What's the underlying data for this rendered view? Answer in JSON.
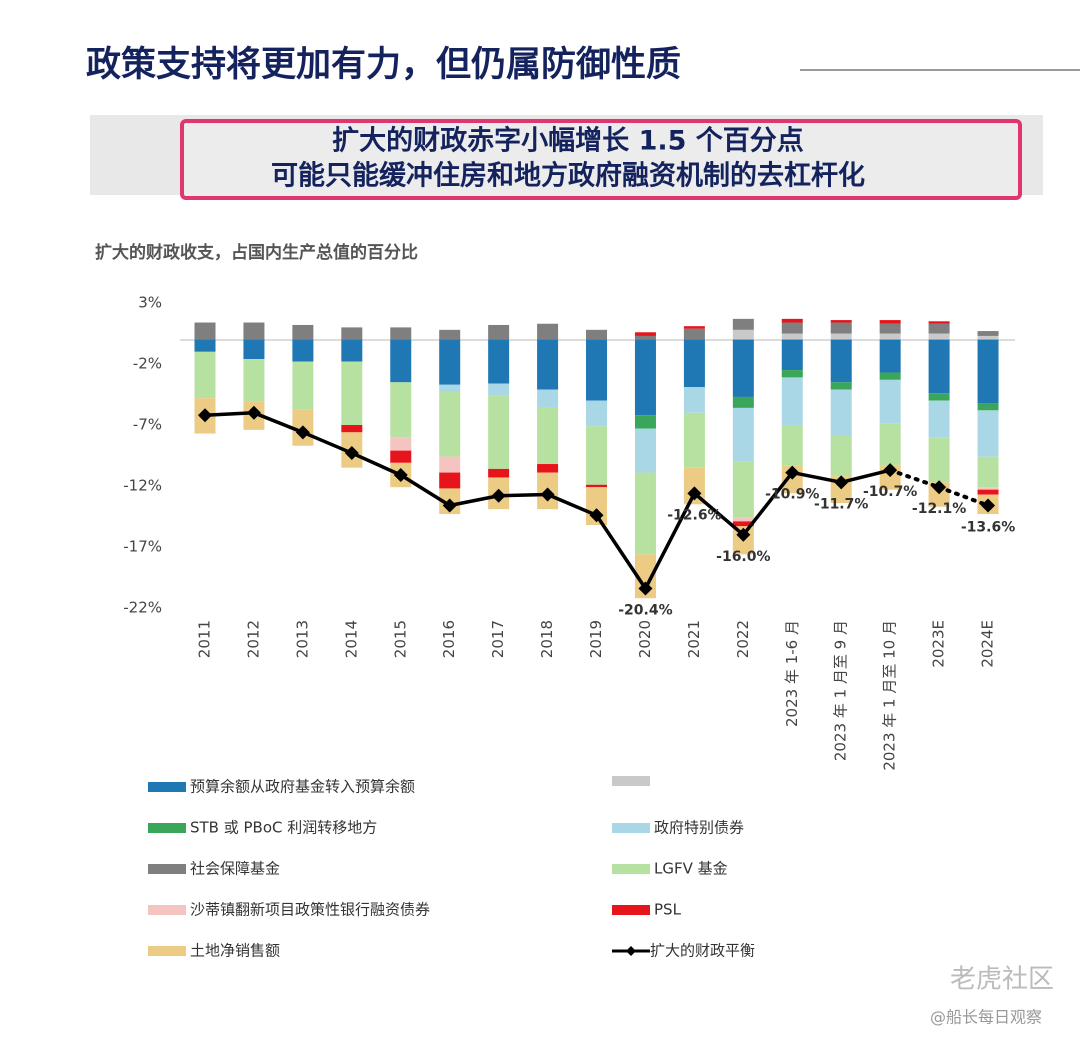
{
  "header": {
    "title": "政策支持将更加有力，但仍属防御性质",
    "callout": [
      "扩大的财政赤字小幅增长 1.5 个百分点",
      "可能只能缓冲住房和地方政府融资机制的去杠杆化"
    ]
  },
  "chart_data": {
    "type": "stacked_bar_line",
    "title": "扩大的财政收支，占国内生产总值的百分比",
    "categories": [
      "2011",
      "2012",
      "2013",
      "2014",
      "2015",
      "2016",
      "2017",
      "2018",
      "2019",
      "2020",
      "2021",
      "2022",
      "2023 年 1-6 月",
      "2023 年 1 月至 9 月",
      "2023 年 1 月至 10 月",
      "2023E",
      "2024E"
    ],
    "ylim": [
      -22,
      3
    ],
    "yticks": [
      {
        "value": 3,
        "label": "3%"
      },
      {
        "value": -2,
        "label": "-2%"
      },
      {
        "value": -7,
        "label": "-7%"
      },
      {
        "value": -12,
        "label": "-12%"
      },
      {
        "value": -17,
        "label": "-17%"
      },
      {
        "value": -22,
        "label": "-22%"
      }
    ],
    "series": [
      {
        "name": null,
        "color": "#c9c9c9",
        "values": [
          null,
          null,
          null,
          null,
          null,
          null,
          null,
          null,
          null,
          null,
          null,
          0.8,
          0.5,
          0.5,
          0.5,
          0.5,
          0.3
        ]
      },
      {
        "name": "社会保障基金",
        "color": "#7f7f7f",
        "values": [
          1.4,
          1.4,
          1.2,
          1.0,
          1.0,
          0.8,
          1.2,
          1.3,
          0.8,
          0.3,
          0.9,
          0.9,
          0.9,
          0.9,
          0.8,
          0.8,
          0.4
        ]
      },
      {
        "name": "预算余额从政府基金转入预算余额",
        "color": "#1f77b4",
        "values": [
          -1.0,
          -1.6,
          -1.8,
          -1.8,
          -3.5,
          -3.7,
          -3.6,
          -4.1,
          -5.0,
          -6.2,
          -3.9,
          -4.7,
          -2.5,
          -3.5,
          -2.7,
          -4.4,
          -5.2
        ]
      },
      {
        "name": "STB 或 PBoC 利润转移地方",
        "color": "#3aa65a",
        "values": [
          null,
          null,
          null,
          null,
          null,
          null,
          null,
          null,
          null,
          -1.1,
          null,
          -0.9,
          -0.6,
          -0.6,
          -0.6,
          -0.6,
          -0.6
        ]
      },
      {
        "name": "政府特别债券",
        "color": "#a9d7e6",
        "values": [
          null,
          null,
          null,
          null,
          null,
          -0.6,
          -1.0,
          -1.5,
          -2.1,
          -3.6,
          -2.1,
          -4.4,
          -3.9,
          -3.8,
          -3.6,
          -3.0,
          -3.8
        ]
      },
      {
        "name": "LGFV 基金",
        "color": "#b7e1a1",
        "values": [
          -3.8,
          -3.5,
          -3.9,
          -5.2,
          -4.5,
          -5.3,
          -6.0,
          -4.6,
          -4.8,
          -6.7,
          -4.5,
          -4.6,
          -3.3,
          -3.3,
          -3.4,
          -3.7,
          -2.5
        ]
      },
      {
        "name": "沙蒂镇翻新项目政策性银行融资债券",
        "color": "#f5c3c0",
        "values": [
          null,
          null,
          null,
          null,
          -1.1,
          -1.3,
          null,
          null,
          null,
          null,
          null,
          -0.3,
          null,
          null,
          null,
          null,
          -0.2
        ]
      },
      {
        "name": "PSL",
        "color": "#e8141c",
        "values": [
          null,
          null,
          null,
          -0.6,
          -1.0,
          -1.3,
          -0.7,
          -0.7,
          -0.2,
          0.3,
          0.2,
          -0.4,
          0.3,
          0.2,
          0.3,
          0.2,
          -0.4
        ]
      },
      {
        "name": "土地净销售额",
        "color": "#eccb85",
        "values": [
          -2.9,
          -2.3,
          -3.0,
          -2.9,
          -2.0,
          -2.1,
          -2.6,
          -3.0,
          -3.1,
          -3.6,
          -3.0,
          -2.3,
          -2.3,
          -2.2,
          -2.0,
          -2.0,
          -1.6
        ]
      }
    ],
    "line": {
      "name": "扩大的财政平衡",
      "color": "#000000",
      "values": [
        -6.2,
        -6.0,
        -7.6,
        -9.3,
        -11.1,
        -13.6,
        -12.8,
        -12.7,
        -14.4,
        -20.4,
        -12.6,
        -16.0,
        -10.9,
        -11.7,
        -10.7,
        -12.1,
        -13.6
      ],
      "value_labels": [
        null,
        null,
        null,
        null,
        null,
        null,
        null,
        null,
        null,
        "-20.4%",
        "-12.6%",
        "-16.0%",
        "-10.9%",
        "-11.7%",
        "-10.7%",
        "-12.1%",
        "-13.6%"
      ]
    }
  },
  "watermark": [
    "老虎社区",
    "@船长每日观察"
  ]
}
